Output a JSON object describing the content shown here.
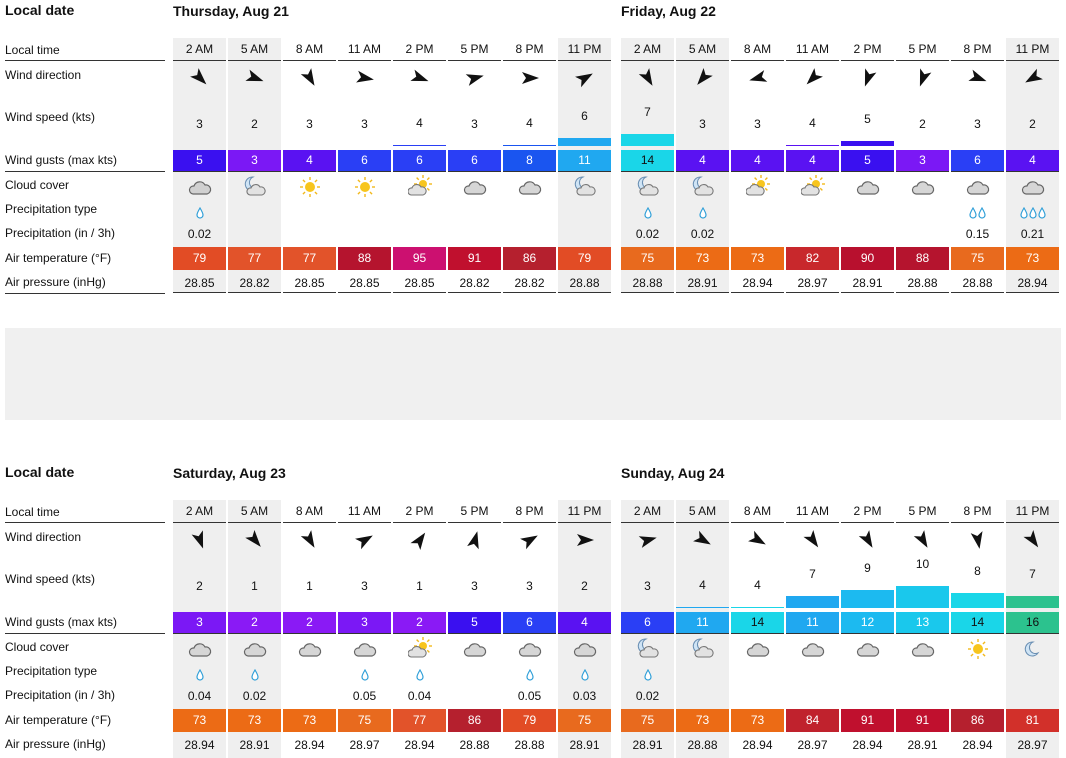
{
  "labels": {
    "local_date": "Local date",
    "local_time": "Local time",
    "wind_direction": "Wind direction",
    "wind_speed": "Wind speed (kts)",
    "wind_gusts": "Wind gusts (max kts)",
    "cloud_cover": "Cloud cover",
    "precip_type": "Precipitation type",
    "precip_amount": "Precipitation (in / 3h)",
    "air_temp": "Air temperature (°F)",
    "air_pressure": "Air pressure (inHg)"
  },
  "blocks": [
    {
      "days": [
        {
          "title": "Thursday, Aug 21",
          "slots": [
            {
              "time": "2 AM",
              "dir": 135,
              "speed": 3,
              "gust": 5,
              "gust_color": "#3a10f0",
              "cloud": "cloud-night",
              "precip": "drop-1",
              "amount": "0.02",
              "temp": 79,
              "temp_color": "#e24c25",
              "pressure": "28.85"
            },
            {
              "time": "5 AM",
              "dir": 110,
              "speed": 2,
              "gust": 3,
              "gust_color": "#7b18f5",
              "cloud": "moon-cloud",
              "precip": "",
              "amount": "",
              "temp": 77,
              "temp_color": "#e2532a",
              "pressure": "28.82"
            },
            {
              "time": "8 AM",
              "dir": 150,
              "speed": 3,
              "gust": 4,
              "gust_color": "#5a12f2",
              "cloud": "sun",
              "precip": "",
              "amount": "",
              "temp": 77,
              "temp_color": "#e2532a",
              "pressure": "28.85"
            },
            {
              "time": "11 AM",
              "dir": 100,
              "speed": 3,
              "gust": 6,
              "gust_color": "#2a3ff5",
              "cloud": "sun",
              "precip": "",
              "amount": "",
              "temp": 88,
              "temp_color": "#b5142e",
              "pressure": "28.85"
            },
            {
              "time": "2 PM",
              "dir": 110,
              "speed": 4,
              "gust": 6,
              "gust_color": "#2a3ff5",
              "cloud": "sun-cloud",
              "precip": "",
              "amount": "",
              "temp": 95,
              "temp_color": "#cc1070",
              "pressure": "28.85"
            },
            {
              "time": "5 PM",
              "dir": 75,
              "speed": 3,
              "gust": 6,
              "gust_color": "#2a3ff5",
              "cloud": "cloud",
              "precip": "",
              "amount": "",
              "temp": 91,
              "temp_color": "#c0102e",
              "pressure": "28.82"
            },
            {
              "time": "8 PM",
              "dir": 90,
              "speed": 4,
              "gust": 8,
              "gust_color": "#1a55f0",
              "cloud": "cloud",
              "precip": "",
              "amount": "",
              "temp": 86,
              "temp_color": "#b5202e",
              "pressure": "28.82"
            },
            {
              "time": "11 PM",
              "dir": 60,
              "speed": 6,
              "gust": 11,
              "gust_color": "#20a8f0",
              "cloud": "moon-cloud",
              "precip": "",
              "amount": "",
              "temp": 79,
              "temp_color": "#e24c25",
              "pressure": "28.88"
            }
          ]
        },
        {
          "title": "Friday, Aug 22",
          "slots": [
            {
              "time": "2 AM",
              "dir": 150,
              "speed": 7,
              "gust": 14,
              "gust_color": "#1ad6e8",
              "cloud": "moon-cloud",
              "precip": "drop-1",
              "amount": "0.02",
              "temp": 75,
              "temp_color": "#e86a1e",
              "pressure": "28.88"
            },
            {
              "time": "5 AM",
              "dir": 220,
              "speed": 3,
              "gust": 4,
              "gust_color": "#5a12f2",
              "cloud": "moon-cloud",
              "precip": "drop-1",
              "amount": "0.02",
              "temp": 73,
              "temp_color": "#ec6b15",
              "pressure": "28.91"
            },
            {
              "time": "8 AM",
              "dir": 255,
              "speed": 3,
              "gust": 4,
              "gust_color": "#5a12f2",
              "cloud": "sun-cloud",
              "precip": "",
              "amount": "",
              "temp": 73,
              "temp_color": "#ec6b15",
              "pressure": "28.94"
            },
            {
              "time": "11 AM",
              "dir": 225,
              "speed": 4,
              "gust": 4,
              "gust_color": "#5a12f2",
              "cloud": "sun-cloud",
              "precip": "",
              "amount": "",
              "temp": 82,
              "temp_color": "#c8282c",
              "pressure": "28.97"
            },
            {
              "time": "2 PM",
              "dir": 200,
              "speed": 5,
              "gust": 5,
              "gust_color": "#3a10f0",
              "cloud": "cloud",
              "precip": "",
              "amount": "",
              "temp": 90,
              "temp_color": "#b8102e",
              "pressure": "28.91"
            },
            {
              "time": "5 PM",
              "dir": 200,
              "speed": 2,
              "gust": 3,
              "gust_color": "#7b18f5",
              "cloud": "cloud",
              "precip": "",
              "amount": "",
              "temp": 88,
              "temp_color": "#b5142e",
              "pressure": "28.88"
            },
            {
              "time": "8 PM",
              "dir": 110,
              "speed": 3,
              "gust": 6,
              "gust_color": "#2a3ff5",
              "cloud": "cloud",
              "precip": "drop-2",
              "amount": "0.15",
              "temp": 75,
              "temp_color": "#e86a1e",
              "pressure": "28.88"
            },
            {
              "time": "11 PM",
              "dir": 240,
              "speed": 2,
              "gust": 4,
              "gust_color": "#5a12f2",
              "cloud": "cloud",
              "precip": "drop-3",
              "amount": "0.21",
              "temp": 73,
              "temp_color": "#ec6b15",
              "pressure": "28.94"
            }
          ]
        }
      ]
    },
    {
      "days": [
        {
          "title": "Saturday, Aug 23",
          "slots": [
            {
              "time": "2 AM",
              "dir": 160,
              "speed": 2,
              "gust": 3,
              "gust_color": "#7b18f5",
              "cloud": "cloud",
              "precip": "drop-1",
              "amount": "0.04",
              "temp": 73,
              "temp_color": "#ec6b15",
              "pressure": "28.94"
            },
            {
              "time": "5 AM",
              "dir": 140,
              "speed": 1,
              "gust": 2,
              "gust_color": "#8a1af5",
              "cloud": "cloud",
              "precip": "drop-1",
              "amount": "0.02",
              "temp": 73,
              "temp_color": "#ec6b15",
              "pressure": "28.91"
            },
            {
              "time": "8 AM",
              "dir": 150,
              "speed": 1,
              "gust": 2,
              "gust_color": "#8a1af5",
              "cloud": "cloud",
              "precip": "",
              "amount": "",
              "temp": 73,
              "temp_color": "#ec6b15",
              "pressure": "28.94"
            },
            {
              "time": "11 AM",
              "dir": 60,
              "speed": 3,
              "gust": 3,
              "gust_color": "#7b18f5",
              "cloud": "cloud",
              "precip": "drop-1",
              "amount": "0.05",
              "temp": 75,
              "temp_color": "#e86a1e",
              "pressure": "28.97"
            },
            {
              "time": "2 PM",
              "dir": 35,
              "speed": 1,
              "gust": 2,
              "gust_color": "#8a1af5",
              "cloud": "sun-cloud",
              "precip": "drop-1",
              "amount": "0.04",
              "temp": 77,
              "temp_color": "#e2532a",
              "pressure": "28.94"
            },
            {
              "time": "5 PM",
              "dir": 15,
              "speed": 3,
              "gust": 5,
              "gust_color": "#3a10f0",
              "cloud": "cloud",
              "precip": "",
              "amount": "",
              "temp": 86,
              "temp_color": "#b5202e",
              "pressure": "28.88"
            },
            {
              "time": "8 PM",
              "dir": 60,
              "speed": 3,
              "gust": 6,
              "gust_color": "#2a3ff5",
              "cloud": "cloud",
              "precip": "drop-1",
              "amount": "0.05",
              "temp": 79,
              "temp_color": "#e24c25",
              "pressure": "28.88"
            },
            {
              "time": "11 PM",
              "dir": 90,
              "speed": 2,
              "gust": 4,
              "gust_color": "#5a12f2",
              "cloud": "cloud",
              "precip": "drop-1",
              "amount": "0.03",
              "temp": 75,
              "temp_color": "#e86a1e",
              "pressure": "28.91"
            }
          ]
        },
        {
          "title": "Sunday, Aug 24",
          "slots": [
            {
              "time": "2 AM",
              "dir": 75,
              "speed": 3,
              "gust": 6,
              "gust_color": "#2a3ff5",
              "cloud": "moon-cloud",
              "precip": "drop-1",
              "amount": "0.02",
              "temp": 75,
              "temp_color": "#e86a1e",
              "pressure": "28.91"
            },
            {
              "time": "5 AM",
              "dir": 120,
              "speed": 4,
              "gust": 11,
              "gust_color": "#20a8f0",
              "cloud": "moon-cloud",
              "precip": "",
              "amount": "",
              "temp": 73,
              "temp_color": "#ec6b15",
              "pressure": "28.88"
            },
            {
              "time": "8 AM",
              "dir": 120,
              "speed": 4,
              "gust": 14,
              "gust_color": "#1ad6e8",
              "cloud": "cloud",
              "precip": "",
              "amount": "",
              "temp": 73,
              "temp_color": "#ec6b15",
              "pressure": "28.94"
            },
            {
              "time": "11 AM",
              "dir": 145,
              "speed": 7,
              "gust": 11,
              "gust_color": "#20a8f0",
              "cloud": "cloud",
              "precip": "",
              "amount": "",
              "temp": 84,
              "temp_color": "#c0222d",
              "pressure": "28.97"
            },
            {
              "time": "2 PM",
              "dir": 150,
              "speed": 9,
              "gust": 12,
              "gust_color": "#1cbaf0",
              "cloud": "cloud",
              "precip": "",
              "amount": "",
              "temp": 91,
              "temp_color": "#c0102e",
              "pressure": "28.94"
            },
            {
              "time": "5 PM",
              "dir": 150,
              "speed": 10,
              "gust": 13,
              "gust_color": "#1ac8ec",
              "cloud": "cloud",
              "precip": "",
              "amount": "",
              "temp": 91,
              "temp_color": "#c0102e",
              "pressure": "28.91"
            },
            {
              "time": "8 PM",
              "dir": 170,
              "speed": 8,
              "gust": 14,
              "gust_color": "#1ad6e8",
              "cloud": "sun",
              "precip": "",
              "amount": "",
              "temp": 86,
              "temp_color": "#b5202e",
              "pressure": "28.94"
            },
            {
              "time": "11 PM",
              "dir": 145,
              "speed": 7,
              "gust": 16,
              "gust_color": "#2cc28e",
              "cloud": "moon",
              "precip": "",
              "amount": "",
              "temp": 81,
              "temp_color": "#d2302a",
              "pressure": "28.97"
            }
          ]
        }
      ]
    }
  ]
}
